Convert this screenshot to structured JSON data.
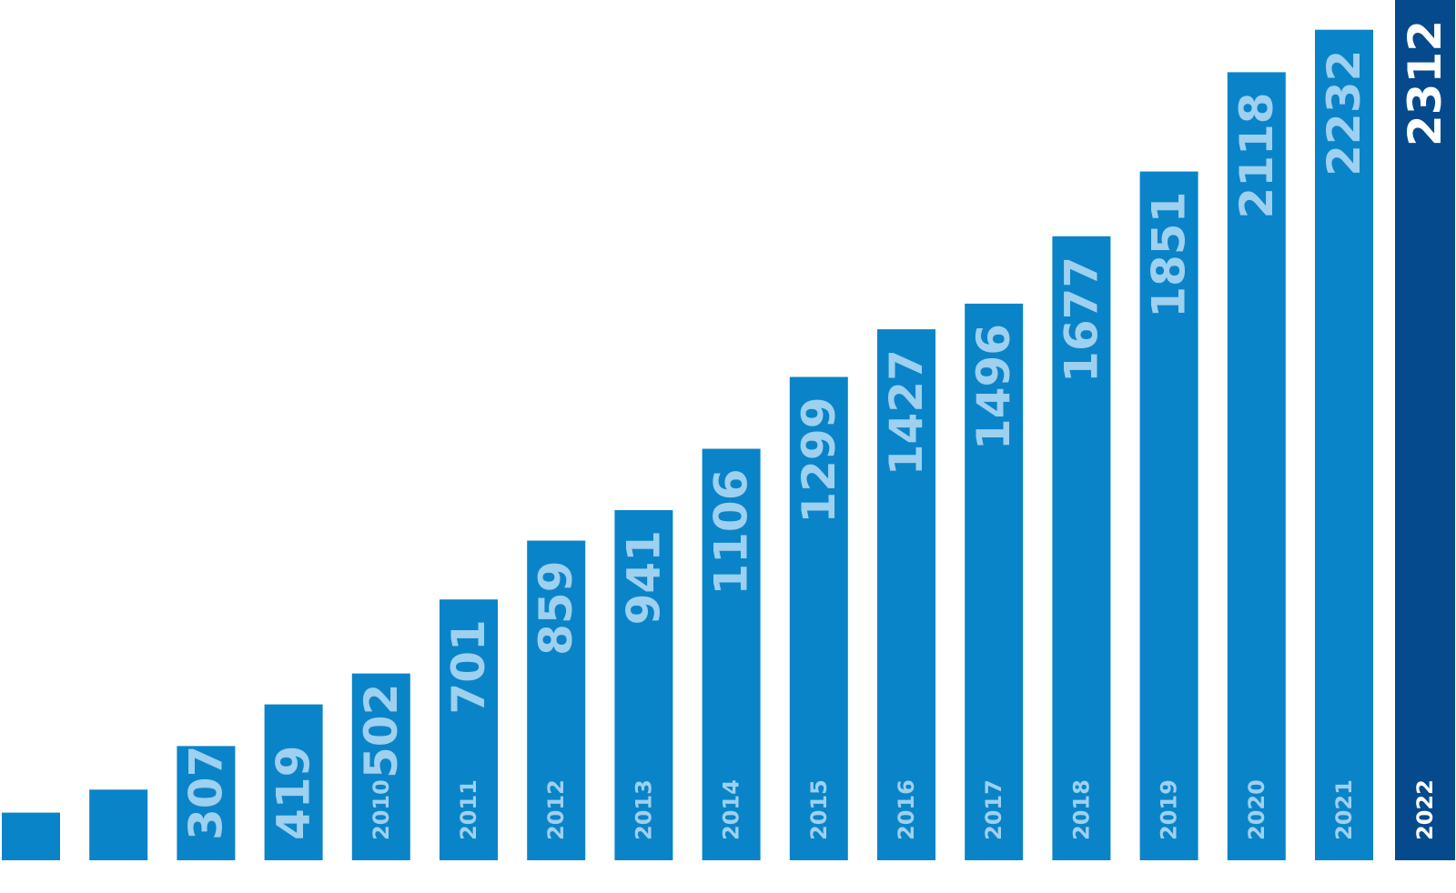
{
  "chart_data": {
    "type": "bar",
    "title": "",
    "xlabel": "",
    "ylabel": "",
    "ylim": [
      0,
      2312
    ],
    "grid": false,
    "legend": "none",
    "categories": [
      "",
      "",
      "",
      "",
      "2010",
      "2011",
      "2012",
      "2013",
      "2014",
      "2015",
      "2016",
      "2017",
      "2018",
      "2019",
      "2020",
      "2021",
      "2022"
    ],
    "values": [
      128,
      190,
      307,
      419,
      502,
      701,
      859,
      941,
      1106,
      1299,
      1427,
      1496,
      1677,
      1851,
      2118,
      2232,
      2312
    ],
    "value_labels": [
      "",
      "",
      "307",
      "419",
      "502",
      "701",
      "859",
      "941",
      "1106",
      "1299",
      "1427",
      "1496",
      "1677",
      "1851",
      "2118",
      "2232",
      "2312"
    ],
    "highlight_category": "2022"
  },
  "colors": {
    "bar": "#0a84c8",
    "highlight_bar": "#064a8e",
    "label": "#9ed0ef",
    "highlight_label": "#ffffff",
    "background": "#ffffff"
  }
}
